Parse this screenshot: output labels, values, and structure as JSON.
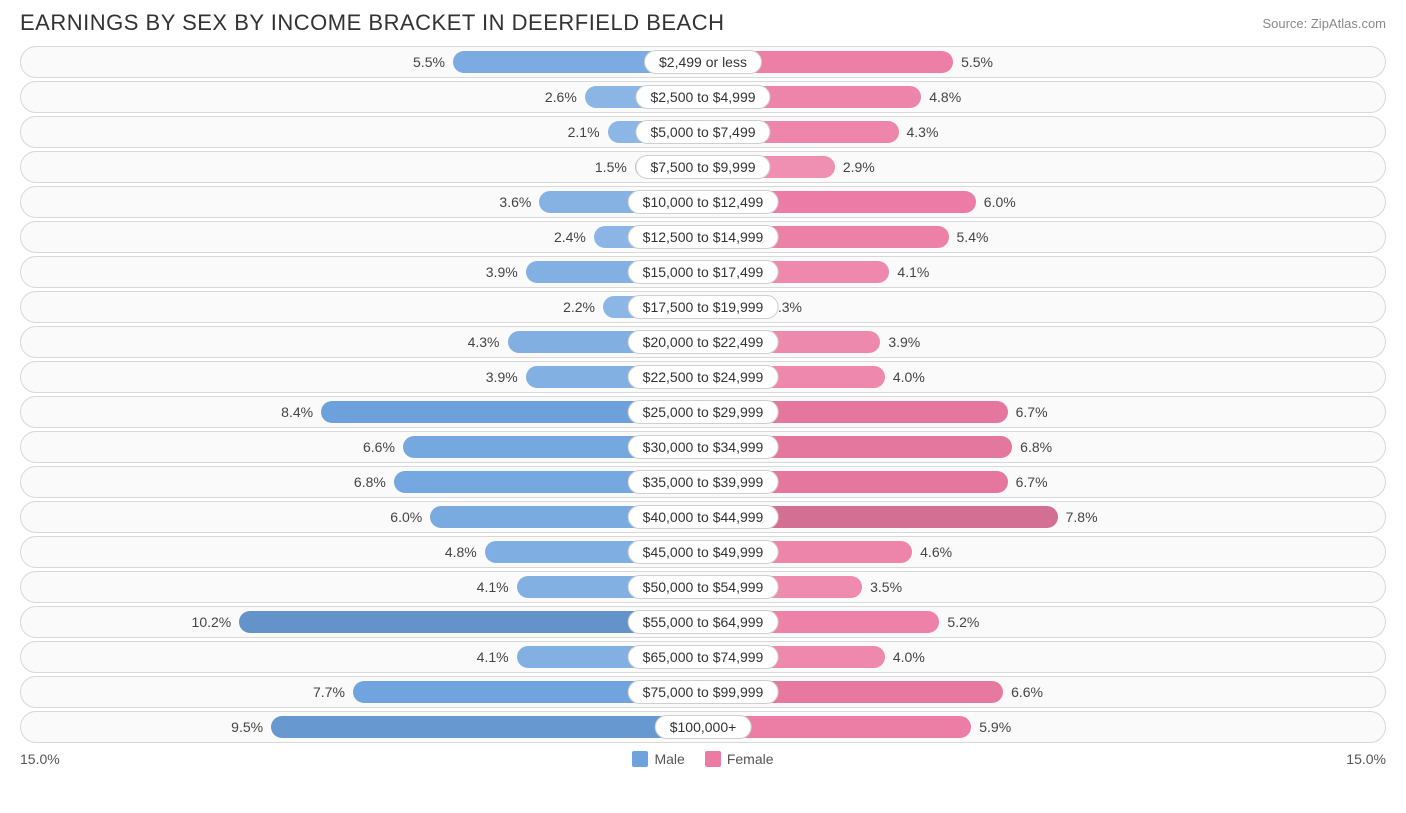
{
  "title": "EARNINGS BY SEX BY INCOME BRACKET IN DEERFIELD BEACH",
  "source": "Source: ZipAtlas.com",
  "axis_max_pct": 15.0,
  "axis_label_left": "15.0%",
  "axis_label_right": "15.0%",
  "legend": {
    "male": "Male",
    "female": "Female"
  },
  "colors": {
    "male_base": "#6ea3de",
    "female_base": "#ec7ba4",
    "track_bg": "#fafafa",
    "track_border": "#d8d8d8",
    "center_bg": "#ffffff",
    "center_border": "#cfcfcf",
    "text": "#444444"
  },
  "rows": [
    {
      "bracket": "$2,499 or less",
      "male": 5.5,
      "female": 5.5
    },
    {
      "bracket": "$2,500 to $4,999",
      "male": 2.6,
      "female": 4.8
    },
    {
      "bracket": "$5,000 to $7,499",
      "male": 2.1,
      "female": 4.3
    },
    {
      "bracket": "$7,500 to $9,999",
      "male": 1.5,
      "female": 2.9
    },
    {
      "bracket": "$10,000 to $12,499",
      "male": 3.6,
      "female": 6.0
    },
    {
      "bracket": "$12,500 to $14,999",
      "male": 2.4,
      "female": 5.4
    },
    {
      "bracket": "$15,000 to $17,499",
      "male": 3.9,
      "female": 4.1
    },
    {
      "bracket": "$17,500 to $19,999",
      "male": 2.2,
      "female": 1.3
    },
    {
      "bracket": "$20,000 to $22,499",
      "male": 4.3,
      "female": 3.9
    },
    {
      "bracket": "$22,500 to $24,999",
      "male": 3.9,
      "female": 4.0
    },
    {
      "bracket": "$25,000 to $29,999",
      "male": 8.4,
      "female": 6.7
    },
    {
      "bracket": "$30,000 to $34,999",
      "male": 6.6,
      "female": 6.8
    },
    {
      "bracket": "$35,000 to $39,999",
      "male": 6.8,
      "female": 6.7
    },
    {
      "bracket": "$40,000 to $44,999",
      "male": 6.0,
      "female": 7.8
    },
    {
      "bracket": "$45,000 to $49,999",
      "male": 4.8,
      "female": 4.6
    },
    {
      "bracket": "$50,000 to $54,999",
      "male": 4.1,
      "female": 3.5
    },
    {
      "bracket": "$55,000 to $64,999",
      "male": 10.2,
      "female": 5.2
    },
    {
      "bracket": "$65,000 to $74,999",
      "male": 4.1,
      "female": 4.0
    },
    {
      "bracket": "$75,000 to $99,999",
      "male": 7.7,
      "female": 6.6
    },
    {
      "bracket": "$100,000+",
      "male": 9.5,
      "female": 5.9
    }
  ]
}
